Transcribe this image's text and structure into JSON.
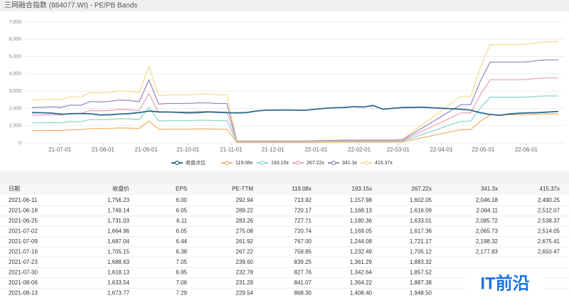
{
  "chart_data": {
    "type": "line",
    "title": "三网融合指数 (884077.WI) - PE/PB Bands",
    "x": [
      "2021-06-11",
      "2021-06-18",
      "2021-06-25",
      "2021-07-02",
      "2021-07-09",
      "2021-07-16",
      "2021-07-23",
      "2021-07-30",
      "2021-08-06",
      "2021-08-13",
      "2021-08-20",
      "2021-08-27",
      "2021-09-03",
      "2021-09-10",
      "2021-09-17",
      "2021-09-24",
      "2021-10-01",
      "2021-10-08",
      "2021-10-15",
      "2021-10-22",
      "2021-10-29",
      "2021-11-05",
      "2021-11-12",
      "2021-11-19",
      "2021-11-26",
      "2021-12-03",
      "2021-12-10",
      "2021-12-17",
      "2021-12-24",
      "2021-12-31",
      "2022-01-07",
      "2022-01-14",
      "2022-01-21",
      "2022-01-28",
      "2022-02-04",
      "2022-02-11",
      "2022-02-18",
      "2022-02-25",
      "2022-03-04",
      "2022-03-11",
      "2022-03-18",
      "2022-03-25",
      "2022-04-01",
      "2022-04-08",
      "2022-04-15",
      "2022-04-22",
      "2022-04-29",
      "2022-05-06",
      "2022-05-13",
      "2022-05-20",
      "2022-05-27",
      "2022-06-03",
      "2022-06-10",
      "2022-06-17",
      "2022-06-24"
    ],
    "xlim": [
      "2021-06-11",
      "2022-06-24"
    ],
    "xticks": [
      {
        "value": "2021-07-01",
        "label": "21-07-01"
      },
      {
        "value": "2021-08-01",
        "label": "21-08-01"
      },
      {
        "value": "2021-09-01",
        "label": "21-09-01"
      },
      {
        "value": "2021-10-01",
        "label": "21-10-01"
      },
      {
        "value": "2021-11-01",
        "label": "21-11-01"
      },
      {
        "value": "2021-12-01",
        "label": "21-12-01"
      },
      {
        "value": "2022-01-01",
        "label": "22-01-01"
      },
      {
        "value": "2022-02-01",
        "label": "22-02-01"
      },
      {
        "value": "2022-03-01",
        "label": "22-03-01"
      },
      {
        "value": "2022-04-01",
        "label": "22-04-01"
      },
      {
        "value": "2022-05-01",
        "label": "22-05-01"
      },
      {
        "value": "2022-06-01",
        "label": "22-06-01"
      }
    ],
    "ylim": [
      0,
      7000
    ],
    "yticks": [
      0,
      {
        "value": 1000,
        "label": "1,000"
      },
      {
        "value": 2000,
        "label": "2,000"
      },
      {
        "value": 3000,
        "label": "3,000"
      },
      {
        "value": 4000,
        "label": "4,000"
      },
      {
        "value": 5000,
        "label": "5,000"
      },
      {
        "value": 6000,
        "label": "6,000"
      },
      {
        "value": 7000,
        "label": "7,000"
      }
    ],
    "grid": true,
    "legend": "bottom",
    "series": [
      {
        "name": "收盘点位",
        "color": "#2d6a8f",
        "values": [
          1756.23,
          1749.14,
          1731.03,
          1664.96,
          1687.04,
          1705.15,
          1688.63,
          1618.13,
          1633.54,
          1673.77,
          1700,
          1760,
          1850,
          1800,
          1790,
          1770,
          1740,
          1760,
          1800,
          1780,
          1750,
          1740,
          1760,
          1850,
          1900,
          1900,
          1910,
          1900,
          1890,
          1950,
          2000,
          2040,
          2050,
          2100,
          2080,
          2170,
          1950,
          2000,
          2050,
          2060,
          2070,
          2040,
          2010,
          1980,
          1950,
          1900,
          1750,
          1650,
          1600,
          1680,
          1720,
          1740,
          1760,
          1790,
          1830
        ]
      },
      {
        "name": "119.08x",
        "color": "#f2b46d",
        "values": [
          713.92,
          720.17,
          727.71,
          720.74,
          767.0,
          759.85,
          839.25,
          827.76,
          841.07,
          868.3,
          857,
          834,
          1274,
          786,
          798,
          798,
          798,
          810,
          810,
          798,
          798,
          36,
          36,
          36,
          36,
          36,
          36,
          36,
          36,
          42,
          48,
          48,
          54,
          54,
          54,
          54,
          54,
          54,
          60,
          179,
          298,
          417,
          536,
          655,
          774,
          774,
          1250,
          1631,
          1631,
          1631,
          1631,
          1643,
          1667,
          1679,
          1679
        ]
      },
      {
        "name": "193.15x",
        "color": "#8fd6cf",
        "values": [
          1157.98,
          1168.13,
          1180.36,
          1169.05,
          1244.08,
          1232.49,
          1361.29,
          1342.64,
          1364.22,
          1408.4,
          1391,
          1352,
          2067,
          1275,
          1294,
          1294,
          1294,
          1313,
          1313,
          1294,
          1294,
          58,
          58,
          58,
          58,
          58,
          58,
          58,
          58,
          68,
          77,
          77,
          87,
          87,
          87,
          87,
          87,
          87,
          97,
          290,
          483,
          676,
          869,
          1062,
          1255,
          1255,
          2028,
          2646,
          2646,
          2646,
          2646,
          2665,
          2704,
          2723,
          2723
        ]
      },
      {
        "name": "267.22x",
        "color": "#eaa7b6",
        "values": [
          1602.05,
          1616.09,
          1633.01,
          1617.36,
          1721.17,
          1705.12,
          1883.32,
          1857.52,
          1887.38,
          1948.5,
          1924,
          1871,
          2859,
          1764,
          1790,
          1790,
          1790,
          1817,
          1817,
          1790,
          1790,
          80,
          80,
          80,
          80,
          80,
          80,
          80,
          80,
          94,
          107,
          107,
          120,
          120,
          120,
          120,
          120,
          120,
          134,
          401,
          668,
          935,
          1202,
          1470,
          1737,
          1737,
          2806,
          3661,
          3661,
          3661,
          3661,
          3688,
          3741,
          3768,
          3768
        ]
      },
      {
        "name": "341.3x",
        "color": "#9a8bc0",
        "values": [
          2046.18,
          2064.11,
          2085.72,
          2065.73,
          2198.32,
          2177.83,
          2406,
          2372,
          2410,
          2488,
          2457,
          2389,
          3652,
          2253,
          2287,
          2287,
          2287,
          2321,
          2321,
          2287,
          2287,
          102,
          102,
          102,
          102,
          102,
          102,
          102,
          102,
          119,
          137,
          137,
          154,
          154,
          154,
          154,
          154,
          154,
          171,
          512,
          853,
          1195,
          1536,
          1877,
          2218,
          2218,
          3584,
          4676,
          4676,
          4676,
          4676,
          4710,
          4778,
          4812,
          4812
        ]
      },
      {
        "name": "415.37x",
        "color": "#f3dd94",
        "values": [
          2490.25,
          2512.07,
          2538.37,
          2514.05,
          2675.41,
          2650.47,
          2928,
          2887,
          2932,
          3028,
          2991,
          2908,
          4444,
          2741,
          2783,
          2783,
          2783,
          2825,
          2825,
          2783,
          2783,
          125,
          125,
          125,
          125,
          125,
          125,
          125,
          125,
          145,
          166,
          166,
          187,
          187,
          187,
          187,
          187,
          187,
          208,
          623,
          1038,
          1454,
          1869,
          2285,
          2700,
          2700,
          4361,
          5691,
          5691,
          5691,
          5691,
          5732,
          5815,
          5857,
          5857
        ]
      }
    ]
  },
  "table": {
    "columns": [
      "日期",
      "收盘价",
      "EPS",
      "PE-TTM",
      "119.08x",
      "193.15x",
      "267.22x",
      "341.3x",
      "415.37x"
    ],
    "rows": [
      [
        "2021-06-11",
        "1,756.23",
        "6.00",
        "292.94",
        "713.92",
        "1,157.98",
        "1,602.05",
        "2,046.18",
        "2,490.25"
      ],
      [
        "2021-06-18",
        "1,749.14",
        "6.05",
        "289.22",
        "720.17",
        "1,168.13",
        "1,616.09",
        "2,064.11",
        "2,512.07"
      ],
      [
        "2021-06-25",
        "1,731.03",
        "6.11",
        "283.26",
        "727.71",
        "1,180.36",
        "1,633.01",
        "2,085.72",
        "2,538.37"
      ],
      [
        "2021-07-02",
        "1,664.96",
        "6.05",
        "275.08",
        "720.74",
        "1,169.05",
        "1,617.36",
        "2,065.73",
        "2,514.05"
      ],
      [
        "2021-07-09",
        "1,687.04",
        "6.44",
        "261.92",
        "767.00",
        "1,244.08",
        "1,721.17",
        "2,198.32",
        "2,675.41"
      ],
      [
        "2021-07-16",
        "1,705.15",
        "6.38",
        "267.22",
        "759.85",
        "1,232.49",
        "1,705.12",
        "2,177.83",
        "2,650.47"
      ],
      [
        "2021-07-23",
        "1,688.63",
        "7.05",
        "239.60",
        "839.25",
        "1,361.29",
        "1,883.32"
      ],
      [
        "2021-07-30",
        "1,618.13",
        "6.95",
        "232.78",
        "827.76",
        "1,342.64",
        "1,857.52"
      ],
      [
        "2021-08-06",
        "1,633.54",
        "7.06",
        "231.28",
        "841.07",
        "1,364.22",
        "1,887.38"
      ],
      [
        "2021-08-13",
        "1,673.77",
        "7.29",
        "229.54",
        "868.30",
        "1,408.40",
        "1,948.50"
      ]
    ]
  },
  "logo": "IT前沿"
}
